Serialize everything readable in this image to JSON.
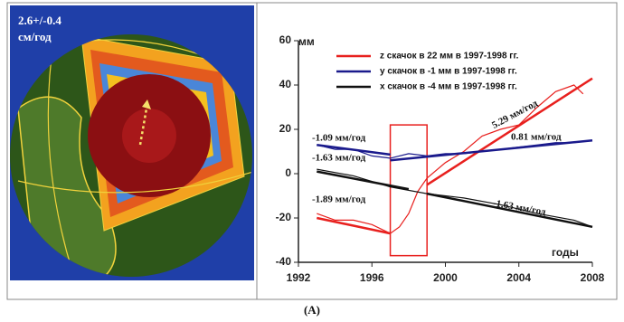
{
  "image_label": [
    "2.6+/-0.4",
    "см/год"
  ],
  "caption": "(A)",
  "chart_data": {
    "type": "line",
    "y_label": "мм",
    "x_label": "годы",
    "xlim": [
      1992,
      2008
    ],
    "xticks": [
      1992,
      1996,
      2000,
      2004,
      2008
    ],
    "ylim": [
      -40,
      60
    ],
    "yticks": [
      -40,
      -20,
      0,
      20,
      40,
      60
    ],
    "series": [
      {
        "name": "z  скачок  в 22 мм в 1997-1998 гг.",
        "color": "#e8201e",
        "x": [
          1993,
          1994,
          1995,
          1996,
          1997,
          1997.5,
          1998,
          1998.5,
          1999,
          2000,
          2001,
          2002,
          2003,
          2004,
          2005,
          2006,
          2007,
          2007.5
        ],
        "values": [
          -18,
          -21,
          -21,
          -23,
          -27,
          -24,
          -18,
          -8,
          -2,
          5,
          10,
          17,
          20,
          22,
          30,
          37,
          40,
          36
        ],
        "trends": [
          {
            "x": [
              1993,
              1997
            ],
            "values": [
              -20,
              -27
            ]
          },
          {
            "x": [
              1999,
              2008
            ],
            "values": [
              -5,
              43
            ]
          }
        ]
      },
      {
        "name": "y  скачок  в  -1 мм в 1997-1998 гг.",
        "color": "#1a1a8c",
        "x": [
          1993,
          1994,
          1995,
          1996,
          1997,
          1998,
          1999,
          2000,
          2001,
          2002,
          2003,
          2004,
          2005,
          2006,
          2007,
          2008
        ],
        "values": [
          13,
          11,
          11,
          8,
          7,
          9,
          8,
          9,
          9,
          10,
          11,
          12,
          13,
          14,
          14,
          15
        ],
        "trends": [
          {
            "x": [
              1993,
              1997
            ],
            "values": [
              13,
              8.6
            ]
          },
          {
            "x": [
              1997,
              2008
            ],
            "values": [
              6,
              15
            ]
          }
        ]
      },
      {
        "name": "x  скачок  в -4 мм в 1997-1998 гг.",
        "color": "#111111",
        "x": [
          1993,
          1995,
          1997,
          1999,
          2001,
          2003,
          2005,
          2007,
          2008
        ],
        "values": [
          2,
          -1,
          -6,
          -9,
          -11,
          -14,
          -18,
          -21,
          -24
        ],
        "trends": [
          {
            "x": [
              1993,
              1998
            ],
            "values": [
              1,
              -7
            ]
          },
          {
            "x": [
              1999,
              2008
            ],
            "values": [
              -9,
              -24
            ]
          }
        ]
      }
    ],
    "annotations": [
      "-1.09 мм/год",
      "-1.63 мм/год",
      "-1.89 мм/год",
      "5.29 мм/год",
      "0.81 мм/год",
      "-1.63 мм/год"
    ]
  }
}
